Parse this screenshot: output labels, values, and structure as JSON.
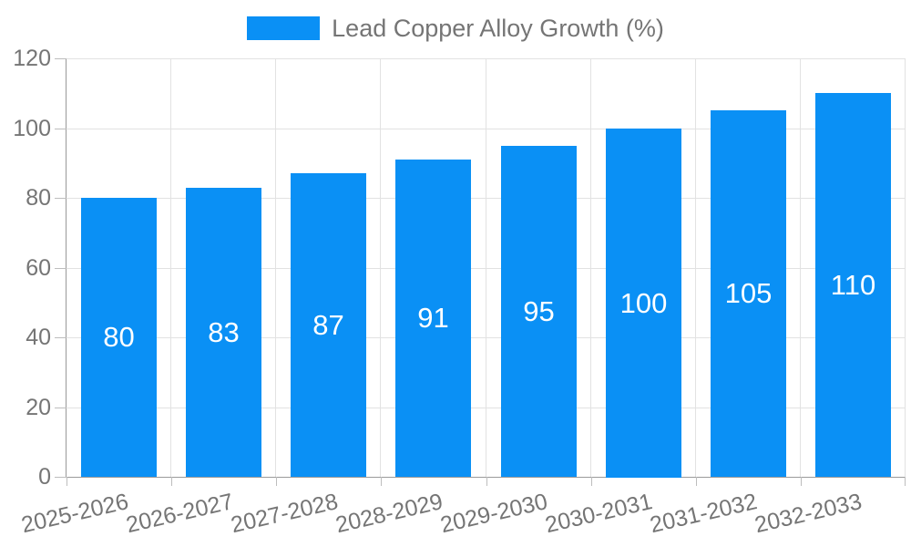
{
  "chart_data": {
    "type": "bar",
    "title": "Lead Copper Alloy Growth (%)",
    "legend": {
      "label": "Lead Copper Alloy Growth (%)",
      "position": "top-center"
    },
    "categories": [
      "2025-2026",
      "2026-2027",
      "2027-2028",
      "2028-2029",
      "2029-2030",
      "2030-2031",
      "2031-2032",
      "2032-2033"
    ],
    "series": [
      {
        "name": "Lead Copper Alloy Growth (%)",
        "values": [
          80,
          83,
          87,
          91,
          95,
          100,
          105,
          110
        ]
      }
    ],
    "xlabel": "",
    "ylabel": "",
    "ylim": [
      0,
      120
    ],
    "y_ticks": [
      0,
      20,
      40,
      60,
      80,
      100,
      120
    ],
    "grid": true,
    "value_labels_inside_bars": true,
    "x_label_rotation_deg": -13,
    "colors": {
      "bar": "#0a90f5",
      "value_label": "#ffffff",
      "axis_text": "#757575",
      "gridline": "#e2e2e2",
      "axis_line": "#9a9a9a",
      "tick": "#bdbdbd",
      "background": "#ffffff"
    }
  }
}
